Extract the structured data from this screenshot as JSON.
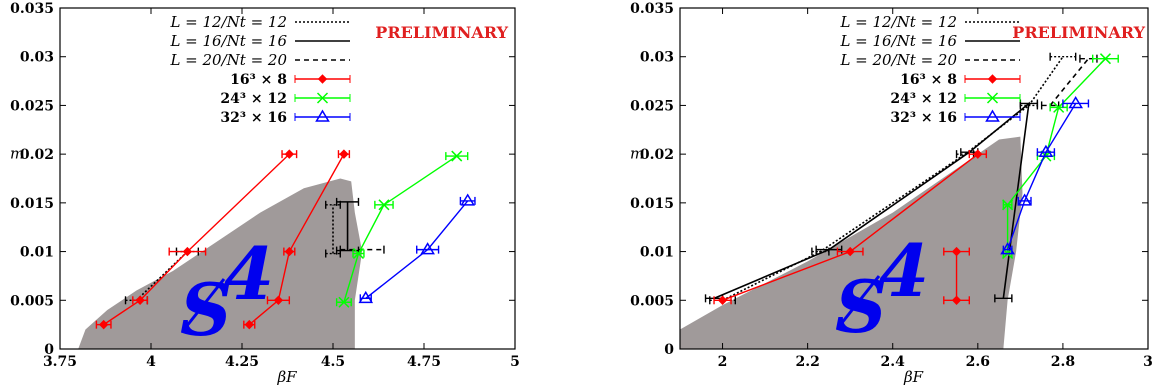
{
  "colors": {
    "red": "#ff0000",
    "green": "#00ff00",
    "blue": "#0000ff",
    "gray": "#a09a9a",
    "black": "#000000",
    "prelim": "#e02020",
    "region": "#0000ee"
  },
  "chart_data": [
    {
      "type": "line",
      "preliminary": "PRELIMINARY",
      "region_label": "S",
      "region_superscript": "4",
      "xlabel": "βF",
      "ylabel": "m",
      "xlim": [
        3.75,
        5.0
      ],
      "ylim": [
        0,
        0.035
      ],
      "xticks": [
        "3.75",
        "4",
        "4.25",
        "4.5",
        "4.75",
        "5"
      ],
      "xtick_values": [
        3.75,
        4.0,
        4.25,
        4.5,
        4.75,
        5.0
      ],
      "yticks": [
        "0",
        "0.005",
        "0.01",
        "0.015",
        "0.02",
        "0.025",
        "0.03",
        "0.035"
      ],
      "ytick_values": [
        0,
        0.005,
        0.01,
        0.015,
        0.02,
        0.025,
        0.03,
        0.035
      ],
      "legend": [
        {
          "label": "L = 12/Nt = 12",
          "style": "dotted",
          "color": "#000000"
        },
        {
          "label": "L = 16/Nt = 16",
          "style": "solid",
          "color": "#000000"
        },
        {
          "label": "L = 20/Nt = 20",
          "style": "dashed",
          "color": "#000000"
        },
        {
          "label": "16³ × 8",
          "style": "diamond",
          "color": "#ff0000"
        },
        {
          "label": "24³ × 12",
          "style": "cross",
          "color": "#00ff00"
        },
        {
          "label": "32³ × 16",
          "style": "triangle",
          "color": "#0000ff"
        }
      ],
      "gray_region": [
        [
          3.8,
          0
        ],
        [
          3.82,
          0.002
        ],
        [
          3.88,
          0.004
        ],
        [
          3.96,
          0.006
        ],
        [
          4.06,
          0.008
        ],
        [
          4.18,
          0.011
        ],
        [
          4.3,
          0.014
        ],
        [
          4.42,
          0.0165
        ],
        [
          4.52,
          0.0175
        ],
        [
          4.55,
          0.0172
        ],
        [
          4.56,
          0.014
        ],
        [
          4.58,
          0.01
        ],
        [
          4.56,
          0.005
        ],
        [
          4.56,
          0
        ]
      ],
      "series": [
        {
          "kind": "phase",
          "style": "dotted",
          "color": "#000000",
          "points": [
            [
              3.96,
              0.005
            ],
            [
              4.1,
              0.01
            ]
          ],
          "xerr": [
            0.03,
            0.03
          ]
        },
        {
          "kind": "phase",
          "style": "dotted",
          "color": "#000000",
          "points": [
            [
              4.5,
              0.0098
            ],
            [
              4.5,
              0.0148
            ]
          ],
          "xerr": [
            0.02,
            0.02
          ]
        },
        {
          "kind": "phase",
          "style": "solid",
          "color": "#000000",
          "points": [
            [
              4.54,
              0.0101
            ],
            [
              4.54,
              0.0151
            ]
          ],
          "xerr": [
            0.03,
            0.03
          ]
        },
        {
          "kind": "phase",
          "style": "dashed",
          "color": "#000000",
          "points": [
            [
              4.58,
              0.0102
            ]
          ],
          "xerr": [
            0.06
          ]
        },
        {
          "kind": "line",
          "marker": "diamond",
          "color": "#ff0000",
          "points": [
            [
              3.87,
              0.0025
            ],
            [
              3.97,
              0.005
            ],
            [
              4.1,
              0.01
            ],
            [
              4.38,
              0.02
            ]
          ],
          "xerr": [
            0.02,
            0.02,
            0.05,
            0.02
          ]
        },
        {
          "kind": "line",
          "marker": "diamond",
          "color": "#ff0000",
          "points": [
            [
              4.27,
              0.0025
            ],
            [
              4.35,
              0.005
            ],
            [
              4.38,
              0.01
            ],
            [
              4.53,
              0.02
            ]
          ],
          "xerr": [
            0.015,
            0.03,
            0.015,
            0.015
          ]
        },
        {
          "kind": "line",
          "marker": "cross",
          "color": "#00ff00",
          "points": [
            [
              4.53,
              0.0048
            ],
            [
              4.57,
              0.0098
            ],
            [
              4.64,
              0.0148
            ],
            [
              4.84,
              0.0198
            ]
          ],
          "xerr": [
            0.02,
            0.015,
            0.025,
            0.03
          ]
        },
        {
          "kind": "line",
          "marker": "triangle",
          "color": "#0000ff",
          "points": [
            [
              4.59,
              0.0052
            ],
            [
              4.76,
              0.0102
            ],
            [
              4.87,
              0.0152
            ]
          ],
          "xerr": [
            0.015,
            0.03,
            0.02
          ]
        }
      ]
    },
    {
      "type": "line",
      "preliminary": "PRELIMINARY",
      "region_label": "S",
      "region_superscript": "4",
      "xlabel": "βF",
      "ylabel": "m",
      "xlim": [
        1.9,
        3.0
      ],
      "ylim": [
        0,
        0.035
      ],
      "xticks": [
        "2",
        "2.2",
        "2.4",
        "2.6",
        "2.8",
        "3"
      ],
      "xtick_values": [
        2.0,
        2.2,
        2.4,
        2.6,
        2.8,
        3.0
      ],
      "yticks": [
        "0",
        "0.005",
        "0.01",
        "0.015",
        "0.02",
        "0.025",
        "0.03",
        "0.035"
      ],
      "ytick_values": [
        0,
        0.005,
        0.01,
        0.015,
        0.02,
        0.025,
        0.03,
        0.035
      ],
      "legend": [
        {
          "label": "L = 12/Nt = 12",
          "style": "dotted",
          "color": "#000000"
        },
        {
          "label": "L = 16/Nt = 16",
          "style": "solid",
          "color": "#000000"
        },
        {
          "label": "L = 20/Nt = 20",
          "style": "dashed",
          "color": "#000000"
        },
        {
          "label": "16³ × 8",
          "style": "diamond",
          "color": "#ff0000"
        },
        {
          "label": "24³ × 12",
          "style": "cross",
          "color": "#00ff00"
        },
        {
          "label": "32³ × 16",
          "style": "triangle",
          "color": "#0000ff"
        }
      ],
      "gray_region": [
        [
          1.9,
          0.002
        ],
        [
          2.0,
          0.0045
        ],
        [
          2.2,
          0.009
        ],
        [
          2.4,
          0.014
        ],
        [
          2.55,
          0.0185
        ],
        [
          2.65,
          0.0215
        ],
        [
          2.7,
          0.0218
        ],
        [
          2.705,
          0.016
        ],
        [
          2.69,
          0.01
        ],
        [
          2.67,
          0.005
        ],
        [
          2.66,
          0.0
        ],
        [
          1.9,
          0.0
        ]
      ],
      "series": [
        {
          "kind": "phase",
          "style": "dotted",
          "color": "#000000",
          "points": [
            [
              2.0,
              0.005
            ],
            [
              2.23,
              0.01
            ],
            [
              2.57,
              0.02
            ],
            [
              2.72,
              0.025
            ],
            [
              2.8,
              0.03
            ]
          ],
          "xerr": [
            0.03,
            0.02,
            0.02,
            0.02,
            0.03
          ]
        },
        {
          "kind": "phase",
          "style": "solid",
          "color": "#000000",
          "points": [
            [
              1.98,
              0.0052
            ],
            [
              2.25,
              0.0102
            ],
            [
              2.58,
              0.0202
            ],
            [
              2.72,
              0.0252
            ],
            [
              2.66,
              0.0052
            ]
          ],
          "xerr": [
            0.02,
            0.03,
            0.02,
            0.02,
            0.02
          ]
        },
        {
          "kind": "phase",
          "style": "dashed",
          "color": "#000000",
          "points": [
            [
              2.77,
              0.025
            ],
            [
              2.86,
              0.0298
            ]
          ],
          "xerr": [
            0.02,
            0.02
          ]
        },
        {
          "kind": "line",
          "marker": "diamond",
          "color": "#ff0000",
          "points": [
            [
              2.0,
              0.005
            ],
            [
              2.3,
              0.01
            ],
            [
              2.6,
              0.02
            ]
          ],
          "xerr": [
            0.02,
            0.03,
            0.02
          ]
        },
        {
          "kind": "line",
          "marker": "diamond",
          "color": "#ff0000",
          "points": [
            [
              2.55,
              0.005
            ],
            [
              2.55,
              0.01
            ]
          ],
          "xerr": [
            0.03,
            0.03
          ]
        },
        {
          "kind": "line",
          "marker": "cross",
          "color": "#00ff00",
          "points": [
            [
              2.67,
              0.0098
            ],
            [
              2.67,
              0.0148
            ],
            [
              2.76,
              0.0198
            ],
            [
              2.79,
              0.0248
            ],
            [
              2.9,
              0.0298
            ]
          ],
          "xerr": [
            0.01,
            0.01,
            0.02,
            0.02,
            0.03
          ]
        },
        {
          "kind": "line",
          "marker": "triangle",
          "color": "#0000ff",
          "points": [
            [
              2.67,
              0.0102
            ],
            [
              2.71,
              0.0152
            ],
            [
              2.76,
              0.0202
            ],
            [
              2.83,
              0.0252
            ]
          ],
          "xerr": [
            0.01,
            0.015,
            0.02,
            0.03
          ]
        }
      ]
    }
  ]
}
